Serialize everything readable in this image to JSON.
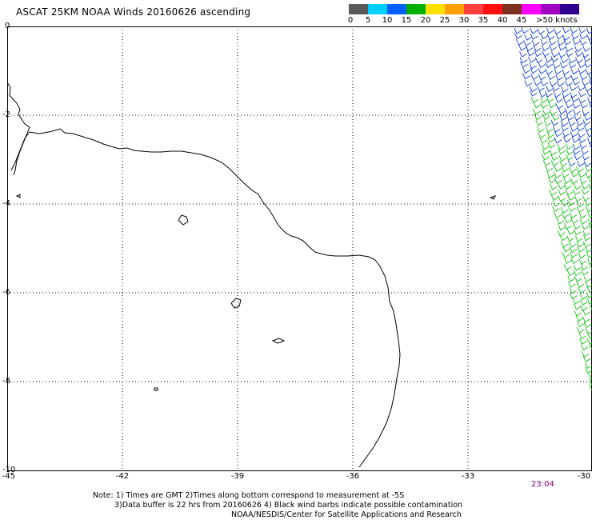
{
  "title": "ASCAT 25KM NOAA Winds 20160626 ascending",
  "scale": {
    "colors": [
      "#5a5a5a",
      "#00d0ff",
      "#0060ff",
      "#00b000",
      "#ffe000",
      "#ffa000",
      "#ff4040",
      "#ff1010",
      "#803020",
      "#ff00ff",
      "#a000c0",
      "#300090"
    ],
    "labels": [
      "0",
      "5",
      "10",
      "15",
      "20",
      "25",
      "30",
      "35",
      "40",
      "45",
      ">50 knots"
    ]
  },
  "axes": {
    "y_labels": [
      "0",
      "-2",
      "-4",
      "-6",
      "-8",
      "-10"
    ],
    "x_labels": [
      "-45",
      "-42",
      "-39",
      "-36",
      "-33",
      "-30"
    ]
  },
  "time_label": "23:04",
  "notes": {
    "line1": "Note: 1) Times are GMT 2)Times along bottom correspond to measurement at -5S",
    "line2": "3)Data buffer is 22 hrs from 20160626 4) Black wind barbs indicate possible contamination",
    "line3": "NOAA/NESDIS/Center for Satellite Applications and Research"
  },
  "colors": {
    "barb_blue": "#1040d0",
    "barb_green": "#10c010",
    "coast": "#000000",
    "time": "#800080"
  }
}
